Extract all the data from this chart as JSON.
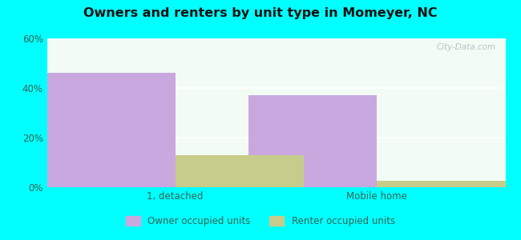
{
  "title": "Owners and renters by unit type in Momeyer, NC",
  "categories": [
    "1, detached",
    "Mobile home"
  ],
  "owner_values": [
    46,
    37
  ],
  "renter_values": [
    13,
    2.5
  ],
  "owner_color": "#c9a8e0",
  "renter_color": "#c8cc8a",
  "ylim": [
    0,
    60
  ],
  "yticks": [
    0,
    20,
    40,
    60
  ],
  "ytick_labels": [
    "0%",
    "20%",
    "40%",
    "60%"
  ],
  "bar_width": 0.28,
  "outer_background": "#00ffff",
  "plot_bg_color": "#dff0d8",
  "legend_owner": "Owner occupied units",
  "legend_renter": "Renter occupied units",
  "watermark": "City-Data.com",
  "tick_color": "#336655",
  "title_color": "#111111"
}
